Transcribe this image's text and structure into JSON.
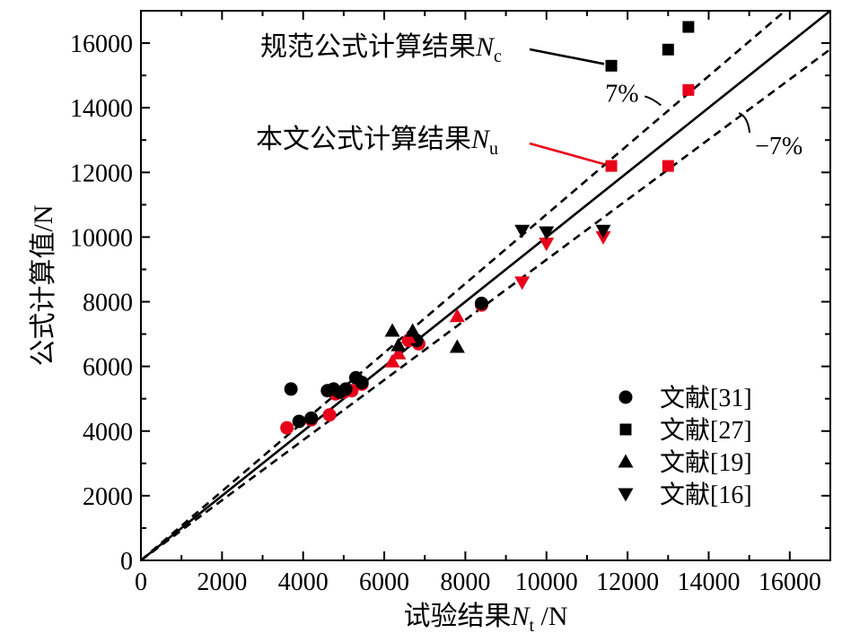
{
  "chart_data": {
    "type": "scatter",
    "xlabel": "试验结果",
    "xlabel_sym": "N",
    "xlabel_sub": "t",
    "xlabel_unit": " /N",
    "ylabel": "公式计算值/N",
    "xlim": [
      0,
      17000
    ],
    "ylim": [
      0,
      17000
    ],
    "xticks": [
      "0",
      "2000",
      "4000",
      "6000",
      "8000",
      "10000",
      "12000",
      "14000",
      "16000"
    ],
    "yticks": [
      "0",
      "2000",
      "4000",
      "6000",
      "8000",
      "10000",
      "12000",
      "14000",
      "16000"
    ],
    "tick_step": 2000,
    "reference_lines": [
      {
        "name": "y=x",
        "slope": 1.0,
        "style": "solid"
      },
      {
        "name": "+7%",
        "slope": 1.07,
        "style": "dashed",
        "label": "7%",
        "label_at_x": 13000
      },
      {
        "name": "-7%",
        "slope": 0.93,
        "style": "dashed",
        "label": "−7%",
        "label_at_x": 14700
      }
    ],
    "annotations": [
      {
        "text": "规范公式计算结果",
        "sym": "N",
        "sub": "c",
        "color": "#000000",
        "point": [
          11600,
          15300
        ]
      },
      {
        "text": "本文公式计算结果",
        "sym": "N",
        "sub": "u",
        "color": "#e8001a",
        "point": [
          11600,
          12200
        ]
      }
    ],
    "series": [
      {
        "name": "文献[31]",
        "marker": "circle",
        "code": [
          [
            3700,
            5300
          ],
          [
            3900,
            4300
          ],
          [
            4200,
            4400
          ],
          [
            4600,
            5250
          ],
          [
            4750,
            5300
          ],
          [
            4900,
            5200
          ],
          [
            5050,
            5300
          ],
          [
            5300,
            5650
          ],
          [
            5450,
            5500
          ],
          [
            6800,
            6800
          ],
          [
            8400,
            7950
          ]
        ],
        "proposed": [
          [
            3600,
            4100
          ],
          [
            4200,
            4350
          ],
          [
            4650,
            4500
          ],
          [
            4800,
            5150
          ],
          [
            5000,
            5200
          ],
          [
            5200,
            5250
          ],
          [
            5450,
            5450
          ],
          [
            6600,
            6800
          ],
          [
            6850,
            6700
          ],
          [
            8400,
            7900
          ]
        ]
      },
      {
        "name": "文献[27]",
        "marker": "square",
        "code": [
          [
            11600,
            15300
          ],
          [
            13000,
            15800
          ],
          [
            13500,
            16500
          ]
        ],
        "proposed": [
          [
            11600,
            12200
          ],
          [
            13000,
            12200
          ],
          [
            13500,
            14550
          ]
        ]
      },
      {
        "name": "文献[19]",
        "marker": "triangle-up",
        "code": [
          [
            6200,
            7100
          ],
          [
            6350,
            6650
          ],
          [
            6700,
            7100
          ],
          [
            7800,
            6600
          ]
        ],
        "proposed": [
          [
            6200,
            6150
          ],
          [
            6350,
            6400
          ],
          [
            6600,
            6900
          ],
          [
            7800,
            7550
          ]
        ]
      },
      {
        "name": "文献[16]",
        "marker": "triangle-down",
        "code": [
          [
            9400,
            10200
          ],
          [
            10000,
            10150
          ],
          [
            11400,
            10200
          ]
        ],
        "proposed": [
          [
            9400,
            8600
          ],
          [
            10000,
            9800
          ],
          [
            11400,
            10000
          ]
        ]
      }
    ],
    "colors": {
      "code": "#000000",
      "proposed": "#e8001a"
    }
  }
}
